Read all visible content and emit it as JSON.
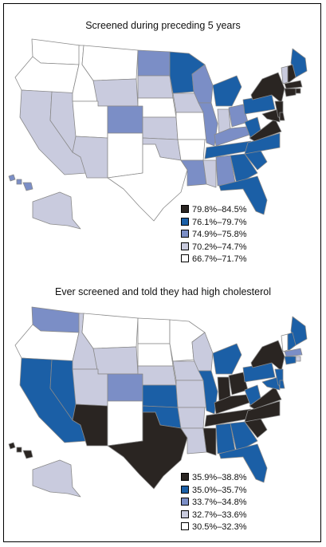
{
  "colors": {
    "c1": "#2a2522",
    "c2": "#1b5fa6",
    "c3": "#7b8ec6",
    "c4": "#c9cbde",
    "c5": "#ffffff",
    "stroke": "#8a8a8a"
  },
  "maps": [
    {
      "title": "Screened during preceding 5 years",
      "legend": [
        {
          "label": "79.8%–84.5%",
          "color": "#2a2522"
        },
        {
          "label": "76.1%–79.7%",
          "color": "#1b5fa6"
        },
        {
          "label": "74.9%–75.8%",
          "color": "#7b8ec6"
        },
        {
          "label": "70.2%–74.7%",
          "color": "#c9cbde"
        },
        {
          "label": "66.7%–71.7%",
          "color": "#ffffff"
        }
      ],
      "states": {
        "WA": 5,
        "OR": 5,
        "CA": 4,
        "NV": 4,
        "ID": 5,
        "MT": 5,
        "WY": 4,
        "UT": 5,
        "AZ": 4,
        "CO": 3,
        "NM": 5,
        "ND": 3,
        "SD": 4,
        "NE": 5,
        "KS": 4,
        "OK": 4,
        "TX": 5,
        "MN": 2,
        "IA": 4,
        "MO": 5,
        "AR": 5,
        "LA": 3,
        "WI": 3,
        "IL": 3,
        "MS": 4,
        "MI": 2,
        "IN": 4,
        "KY": 3,
        "TN": 2,
        "AL": 3,
        "OH": 3,
        "GA": 2,
        "FL": 2,
        "SC": 2,
        "NC": 2,
        "WV": 2,
        "VA": 1,
        "PA": 2,
        "NY": 1,
        "MD": 1,
        "NJ": 1,
        "DE": 1,
        "ME": 2,
        "VT": 4,
        "NH": 1,
        "MA": 1,
        "RI": 1,
        "CT": 1,
        "AK": 4,
        "HI": 3
      }
    },
    {
      "title": "Ever screened and told they had high cholesterol",
      "legend": [
        {
          "label": "35.9%–38.8%",
          "color": "#2a2522"
        },
        {
          "label": "35.0%–35.7%",
          "color": "#1b5fa6"
        },
        {
          "label": "33.7%–34.8%",
          "color": "#7b8ec6"
        },
        {
          "label": "32.7%–33.6%",
          "color": "#c9cbde"
        },
        {
          "label": "30.5%–32.3%",
          "color": "#ffffff"
        }
      ],
      "states": {
        "WA": 3,
        "OR": 5,
        "CA": 2,
        "NV": 2,
        "ID": 4,
        "MT": 5,
        "WY": 4,
        "UT": 4,
        "AZ": 1,
        "CO": 3,
        "NM": 5,
        "ND": 5,
        "SD": 5,
        "NE": 4,
        "KS": 2,
        "OK": 2,
        "TX": 1,
        "MN": 5,
        "IA": 4,
        "MO": 4,
        "AR": 4,
        "LA": 4,
        "WI": 4,
        "IL": 2,
        "MS": 1,
        "MI": 2,
        "IN": 1,
        "KY": 1,
        "TN": 1,
        "AL": 2,
        "OH": 1,
        "GA": 2,
        "FL": 2,
        "SC": 1,
        "NC": 1,
        "WV": 2,
        "VA": 1,
        "PA": 2,
        "NY": 1,
        "MD": 2,
        "NJ": 2,
        "DE": 2,
        "ME": 2,
        "VT": 5,
        "NH": 2,
        "MA": 3,
        "RI": 4,
        "CT": 2,
        "AK": 4,
        "HI": 1
      }
    }
  ]
}
